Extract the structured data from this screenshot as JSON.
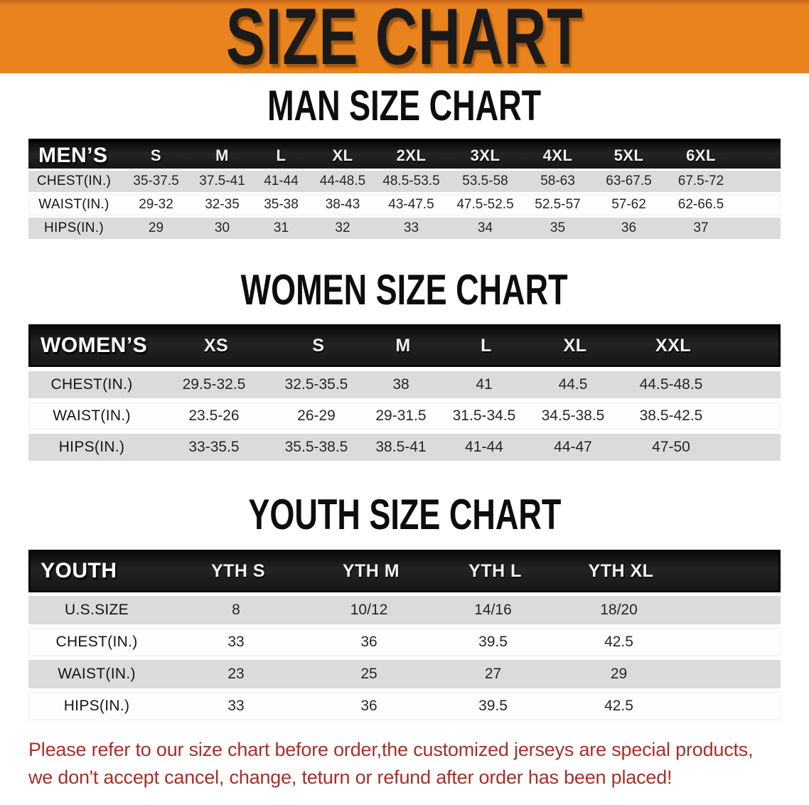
{
  "banner": {
    "title": "SIZE CHART"
  },
  "colors": {
    "banner_bg": "#E8831E",
    "banner_text": "#1A1A1A",
    "header_bg": "#161616",
    "header_text": "#FFFFFF",
    "row_gray": "#DBDBDB",
    "row_white": "#FDFDFD",
    "body_text": "#262626",
    "footer_text": "#A72F26"
  },
  "sections": [
    {
      "id": "men",
      "title": "MAN SIZE CHART",
      "header_label": "MEN’S",
      "columns": [
        "S",
        "M",
        "L",
        "XL",
        "2XL",
        "3XL",
        "4XL",
        "5XL",
        "6XL"
      ],
      "rows": [
        {
          "label": "CHEST(IN.)",
          "values": [
            "35-37.5",
            "37.5-41",
            "41-44",
            "44-48.5",
            "48.5-53.5",
            "53.5-58",
            "58-63",
            "63-67.5",
            "67.5-72"
          ]
        },
        {
          "label": "WAIST(IN.)",
          "values": [
            "29-32",
            "32-35",
            "35-38",
            "38-43",
            "43-47.5",
            "47.5-52.5",
            "52.5-57",
            "57-62",
            "62-66.5"
          ]
        },
        {
          "label": "HIPS(IN.)",
          "values": [
            "29",
            "30",
            "31",
            "32",
            "33",
            "34",
            "35",
            "36",
            "37"
          ]
        }
      ]
    },
    {
      "id": "women",
      "title": "WOMEN SIZE CHART",
      "header_label": "WOMEN’S",
      "columns": [
        "XS",
        "S",
        "M",
        "L",
        "XL",
        "XXL"
      ],
      "rows": [
        {
          "label": "CHEST(IN.)",
          "values": [
            "29.5-32.5",
            "32.5-35.5",
            "38",
            "41",
            "44.5",
            "44.5-48.5"
          ]
        },
        {
          "label": "WAIST(IN.)",
          "values": [
            "23.5-26",
            "26-29",
            "29-31.5",
            "31.5-34.5",
            "34.5-38.5",
            "38.5-42.5"
          ]
        },
        {
          "label": "HIPS(IN.)",
          "values": [
            "33-35.5",
            "35.5-38.5",
            "38.5-41",
            "41-44",
            "44-47",
            "47-50"
          ]
        }
      ]
    },
    {
      "id": "youth",
      "title": "YOUTH SIZE CHART",
      "header_label": "YOUTH",
      "columns": [
        "YTH S",
        "YTH M",
        "YTH L",
        "YTH XL"
      ],
      "rows": [
        {
          "label": "U.S.SIZE",
          "values": [
            "8",
            "10/12",
            "14/16",
            "18/20"
          ]
        },
        {
          "label": "CHEST(IN.)",
          "values": [
            "33",
            "36",
            "39.5",
            "42.5"
          ]
        },
        {
          "label": "WAIST(IN.)",
          "values": [
            "23",
            "25",
            "27",
            "29"
          ]
        },
        {
          "label": "HIPS(IN.)",
          "values": [
            "33",
            "36",
            "39.5",
            "42.5"
          ]
        }
      ]
    }
  ],
  "footer": {
    "line1": "Please refer to our size chart before order,the customized jerseys are special products,",
    "line2": "we don't accept cancel, change, teturn or refund after order has been placed!"
  }
}
